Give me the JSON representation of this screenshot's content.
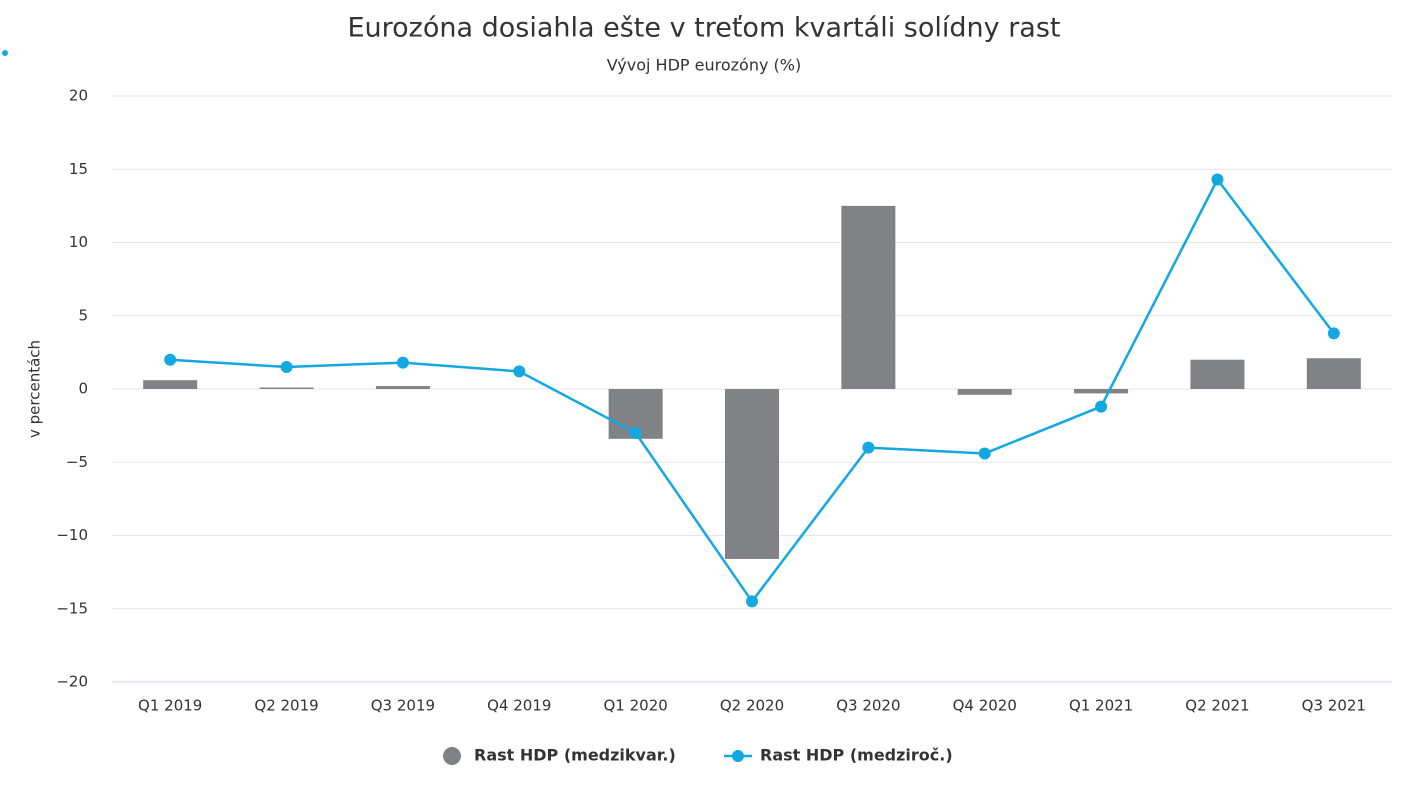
{
  "chart_data": {
    "type": "combo",
    "title": "Eurozóna dosiahla ešte v treťom kvartáli solídny rast",
    "subtitle": "Vývoj HDP eurozóny (%)",
    "y_label": "v percentách",
    "categories": [
      "Q1 2019",
      "Q2 2019",
      "Q3 2019",
      "Q4 2019",
      "Q1 2020",
      "Q2 2020",
      "Q3 2020",
      "Q4 2020",
      "Q1 2021",
      "Q2 2021",
      "Q3 2021"
    ],
    "series": [
      {
        "name": "Rast HDP (medzikvar.)",
        "type": "bar",
        "color": "#808285",
        "values": [
          0.6,
          0.1,
          0.2,
          0.0,
          -3.4,
          -11.6,
          12.5,
          -0.4,
          -0.3,
          2.0,
          2.1
        ]
      },
      {
        "name": "Rast HDP (medziroč.)",
        "type": "line",
        "color": "#14a8e0",
        "values": [
          2.0,
          1.5,
          1.8,
          1.2,
          -3.0,
          -14.5,
          -4.0,
          -4.4,
          -1.2,
          14.3,
          3.8
        ]
      }
    ],
    "ylim": [
      -20,
      20
    ],
    "yticks": [
      {
        "value": -20,
        "label": "−20"
      },
      {
        "value": -15,
        "label": "−15"
      },
      {
        "value": -10,
        "label": "−10"
      },
      {
        "value": -5,
        "label": "−5"
      },
      0,
      5,
      10,
      15,
      20
    ],
    "grid": true,
    "legend": "bottom"
  }
}
